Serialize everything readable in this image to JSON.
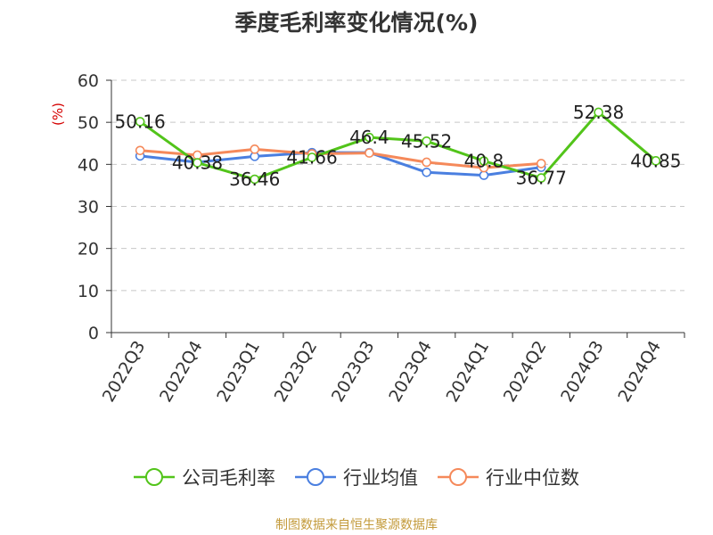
{
  "title": "季度毛利率变化情况(%)",
  "source": "制图数据来自恒生聚源数据库",
  "chart_data": {
    "type": "line",
    "title": "季度毛利率变化情况(%)",
    "ylabel": "(%)",
    "xlabel": "",
    "ylim": [
      0,
      60
    ],
    "yticks": [
      0,
      10,
      20,
      30,
      40,
      50,
      60
    ],
    "grid": true,
    "legend_position": "bottom",
    "categories": [
      "2022Q3",
      "2022Q4",
      "2023Q1",
      "2023Q2",
      "2023Q3",
      "2023Q4",
      "2024Q1",
      "2024Q2",
      "2024Q3",
      "2024Q4"
    ],
    "series": [
      {
        "name": "公司毛利率",
        "color": "#52c41a",
        "values": [
          50.16,
          40.38,
          36.46,
          41.66,
          46.4,
          45.52,
          40.8,
          36.77,
          52.38,
          40.85
        ],
        "labels": [
          "50.16",
          "40.38",
          "36.46",
          "41.66",
          "46.4",
          "45.52",
          "40.8",
          "36.77",
          "52.38",
          "40.85"
        ]
      },
      {
        "name": "行业均值",
        "color": "#4a7fe0",
        "values": [
          42.0,
          40.5,
          41.9,
          42.8,
          42.8,
          38.1,
          37.4,
          39.3,
          null,
          null
        ]
      },
      {
        "name": "行业中位数",
        "color": "#f5895a",
        "values": [
          43.3,
          42.2,
          43.6,
          42.5,
          42.7,
          40.5,
          39.2,
          40.2,
          null,
          null
        ]
      }
    ]
  }
}
